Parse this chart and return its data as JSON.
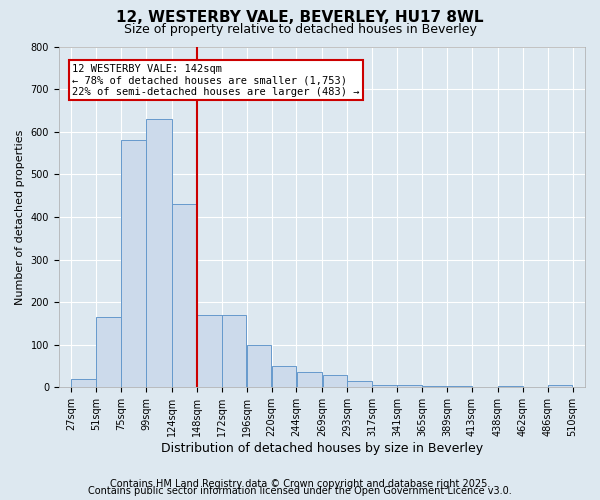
{
  "title_line1": "12, WESTERBY VALE, BEVERLEY, HU17 8WL",
  "title_line2": "Size of property relative to detached houses in Beverley",
  "xlabel": "Distribution of detached houses by size in Beverley",
  "ylabel": "Number of detached properties",
  "bar_left_edges": [
    27,
    51,
    75,
    99,
    124,
    148,
    172,
    196,
    220,
    244,
    269,
    293,
    317,
    341,
    365,
    389,
    413,
    438,
    462,
    486
  ],
  "bar_widths": [
    24,
    24,
    24,
    25,
    24,
    24,
    24,
    24,
    24,
    25,
    24,
    24,
    24,
    24,
    24,
    24,
    25,
    24,
    24,
    24
  ],
  "bar_heights": [
    20,
    165,
    580,
    630,
    430,
    170,
    170,
    100,
    50,
    35,
    30,
    15,
    5,
    5,
    3,
    3,
    0,
    2,
    0,
    5
  ],
  "bar_color": "#ccdaeb",
  "bar_edge_color": "#6699cc",
  "vline_x": 148,
  "vline_color": "#cc0000",
  "annotation_title": "12 WESTERBY VALE: 142sqm",
  "annotation_line1": "← 78% of detached houses are smaller (1,753)",
  "annotation_line2": "22% of semi-detached houses are larger (483) →",
  "annotation_box_facecolor": "white",
  "annotation_box_edgecolor": "#cc0000",
  "ylim": [
    0,
    800
  ],
  "yticks": [
    0,
    100,
    200,
    300,
    400,
    500,
    600,
    700,
    800
  ],
  "tick_labels": [
    "27sqm",
    "51sqm",
    "75sqm",
    "99sqm",
    "124sqm",
    "148sqm",
    "172sqm",
    "196sqm",
    "220sqm",
    "244sqm",
    "269sqm",
    "293sqm",
    "317sqm",
    "341sqm",
    "365sqm",
    "389sqm",
    "413sqm",
    "438sqm",
    "462sqm",
    "486sqm",
    "510sqm"
  ],
  "tick_positions": [
    27,
    51,
    75,
    99,
    124,
    148,
    172,
    196,
    220,
    244,
    269,
    293,
    317,
    341,
    365,
    389,
    413,
    438,
    462,
    486,
    510
  ],
  "footer_line1": "Contains HM Land Registry data © Crown copyright and database right 2025.",
  "footer_line2": "Contains public sector information licensed under the Open Government Licence v3.0.",
  "bg_color": "#dde8f0",
  "plot_bg_color": "#dde8f0",
  "grid_color": "white",
  "title_fontsize": 11,
  "subtitle_fontsize": 9,
  "ylabel_fontsize": 8,
  "xlabel_fontsize": 9,
  "tick_fontsize": 7,
  "footer_fontsize": 7
}
